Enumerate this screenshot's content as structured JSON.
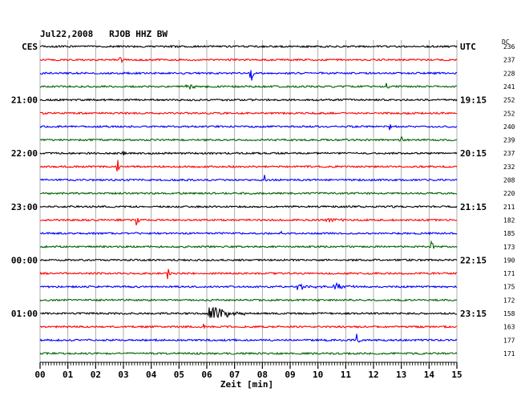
{
  "header": {
    "title": "Jul22,2008   RJOB HHZ BW",
    "left_tz": "CES",
    "right_tz": "UTC",
    "dc_label": "DC"
  },
  "chart_data": {
    "type": "line",
    "title": "Jul22,2008   RJOB HHZ BW",
    "xlabel": "Zeit [min]",
    "ylabel": "",
    "xlim": [
      0,
      15
    ],
    "x_ticks": [
      "00",
      "01",
      "02",
      "03",
      "04",
      "05",
      "06",
      "07",
      "08",
      "09",
      "10",
      "11",
      "12",
      "13",
      "14",
      "15"
    ],
    "grid": true,
    "colors": [
      "#000000",
      "#ff0000",
      "#0000ff",
      "#006400"
    ],
    "left_labels": [
      {
        "row": 0,
        "text": "CES"
      },
      {
        "row": 4,
        "text": "21:00"
      },
      {
        "row": 8,
        "text": "22:00"
      },
      {
        "row": 12,
        "text": "23:00"
      },
      {
        "row": 16,
        "text": "00:00"
      },
      {
        "row": 20,
        "text": "01:00"
      }
    ],
    "right_labels": [
      {
        "row": 0,
        "text": "UTC"
      },
      {
        "row": 4,
        "text": "19:15"
      },
      {
        "row": 8,
        "text": "20:15"
      },
      {
        "row": 12,
        "text": "21:15"
      },
      {
        "row": 16,
        "text": "22:15"
      },
      {
        "row": 20,
        "text": "23:15"
      }
    ],
    "dc_values": [
      "236",
      "237",
      "228",
      "241",
      "252",
      "252",
      "240",
      "239",
      "237",
      "232",
      "208",
      "220",
      "211",
      "182",
      "185",
      "173",
      "190",
      "171",
      "175",
      "172",
      "158",
      "163",
      "177",
      "171"
    ],
    "events": [
      {
        "row": 1,
        "minute": 2.9,
        "amp": 4
      },
      {
        "row": 2,
        "minute": 7.6,
        "amp": 12
      },
      {
        "row": 3,
        "minute": 5.3,
        "amp": 4,
        "duration": 0.8
      },
      {
        "row": 3,
        "minute": 12.5,
        "amp": 4
      },
      {
        "row": 6,
        "minute": 12.6,
        "amp": 6
      },
      {
        "row": 7,
        "minute": 13.0,
        "amp": 4
      },
      {
        "row": 8,
        "minute": 3.0,
        "amp": 6
      },
      {
        "row": 9,
        "minute": 2.8,
        "amp": 10
      },
      {
        "row": 10,
        "minute": 8.1,
        "amp": 8
      },
      {
        "row": 13,
        "minute": 3.5,
        "amp": 7
      },
      {
        "row": 13,
        "minute": 10.3,
        "amp": 4,
        "duration": 0.7
      },
      {
        "row": 14,
        "minute": 8.7,
        "amp": 8
      },
      {
        "row": 15,
        "minute": 14.1,
        "amp": 8
      },
      {
        "row": 17,
        "minute": 4.6,
        "amp": 9
      },
      {
        "row": 18,
        "minute": 9.3,
        "amp": 4,
        "duration": 1.0
      },
      {
        "row": 18,
        "minute": 10.6,
        "amp": 5,
        "duration": 1.0
      },
      {
        "row": 20,
        "minute": 6.1,
        "amp": 11,
        "duration": 1.3
      },
      {
        "row": 21,
        "minute": 5.9,
        "amp": 5
      },
      {
        "row": 22,
        "minute": 11.4,
        "amp": 9
      }
    ]
  }
}
